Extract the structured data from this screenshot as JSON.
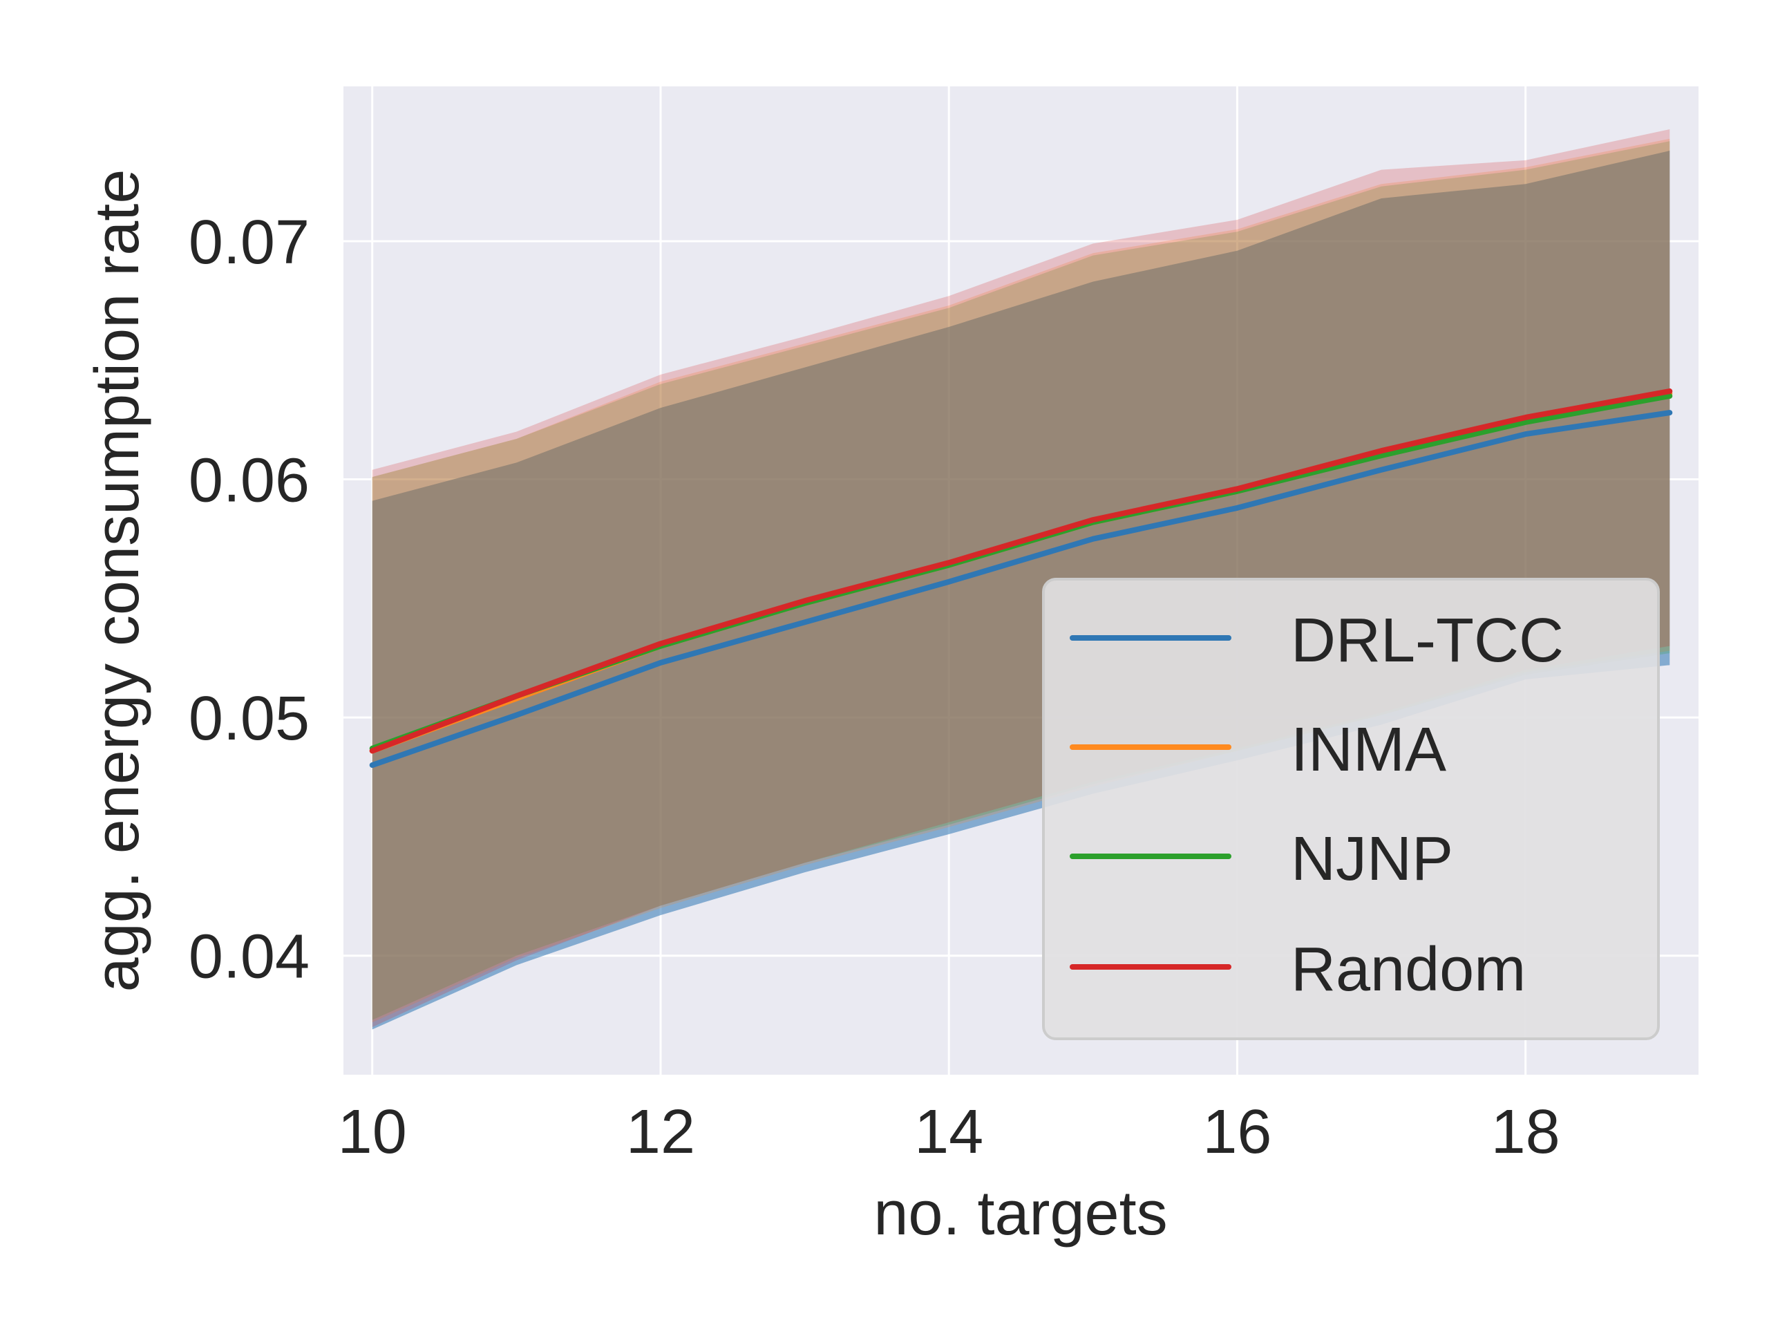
{
  "chart_data": {
    "type": "line",
    "xlabel": "no. targets",
    "ylabel": "agg. energy consumption rate",
    "xlim": [
      9.8,
      19.2
    ],
    "ylim": [
      0.035,
      0.0765
    ],
    "x_ticks": [
      10,
      12,
      14,
      16,
      18
    ],
    "x_tick_labels": [
      "10",
      "12",
      "14",
      "16",
      "18"
    ],
    "y_ticks": [
      0.04,
      0.05,
      0.06,
      0.07
    ],
    "y_tick_labels": [
      "0.04",
      "0.05",
      "0.06",
      "0.07"
    ],
    "grid": true,
    "legend_position": "lower-right",
    "x": [
      10,
      11,
      12,
      13,
      14,
      15,
      16,
      17,
      18,
      19
    ],
    "series": [
      {
        "name": "DRL-TCC",
        "color": "#2f77b4",
        "values": [
          0.048,
          0.0501,
          0.0523,
          0.054,
          0.0557,
          0.0575,
          0.0588,
          0.0604,
          0.0619,
          0.0628
        ],
        "lower": [
          0.0369,
          0.0396,
          0.0417,
          0.0435,
          0.0451,
          0.0468,
          0.0482,
          0.0497,
          0.0516,
          0.0522
        ],
        "upper": [
          0.0591,
          0.0607,
          0.063,
          0.0647,
          0.0664,
          0.0683,
          0.0696,
          0.0718,
          0.0724,
          0.0738
        ]
      },
      {
        "name": "INMA",
        "color": "#ff8a1f",
        "values": [
          0.0486,
          0.0508,
          0.053,
          0.0548,
          0.0564,
          0.0582,
          0.0595,
          0.0611,
          0.0625,
          0.0636
        ],
        "lower": [
          0.0372,
          0.0399,
          0.042,
          0.0438,
          0.0454,
          0.0471,
          0.0486,
          0.0501,
          0.0519,
          0.0528
        ],
        "upper": [
          0.0601,
          0.0617,
          0.0641,
          0.0657,
          0.0673,
          0.0695,
          0.0705,
          0.0724,
          0.0731,
          0.0743
        ]
      },
      {
        "name": "NJNP",
        "color": "#2ca02c",
        "values": [
          0.0487,
          0.0509,
          0.053,
          0.0548,
          0.0564,
          0.0582,
          0.0595,
          0.061,
          0.0624,
          0.0635
        ],
        "lower": [
          0.0373,
          0.04,
          0.0421,
          0.0439,
          0.0455,
          0.0472,
          0.0486,
          0.0501,
          0.0518,
          0.0527
        ],
        "upper": [
          0.0601,
          0.0617,
          0.064,
          0.0656,
          0.0672,
          0.0694,
          0.0704,
          0.0723,
          0.073,
          0.0742
        ]
      },
      {
        "name": "Random",
        "color": "#d62728",
        "values": [
          0.0486,
          0.0509,
          0.0531,
          0.0549,
          0.0565,
          0.0583,
          0.0596,
          0.0612,
          0.0626,
          0.0637
        ],
        "lower": [
          0.037,
          0.0398,
          0.0421,
          0.0439,
          0.0456,
          0.0473,
          0.0487,
          0.0502,
          0.052,
          0.053
        ],
        "upper": [
          0.0604,
          0.062,
          0.0644,
          0.066,
          0.0677,
          0.0699,
          0.0709,
          0.073,
          0.0734,
          0.0747
        ]
      }
    ]
  },
  "colors": {
    "plot_background": "#eaeaf2",
    "grid": "#ffffff",
    "text": "#262626",
    "legend_background": "#e1dfe2",
    "legend_border": "#cccccc",
    "band_fill": "#b49c82"
  }
}
